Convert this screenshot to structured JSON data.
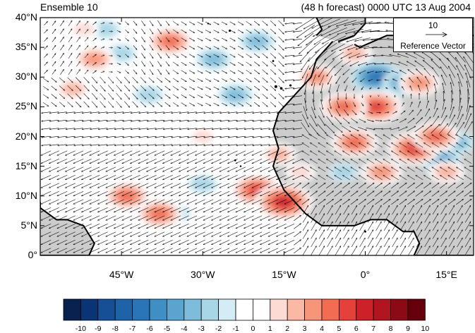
{
  "header": {
    "left_title": "Ensemble 10",
    "right_title": "(48 h forecast) 0000 UTC 13 Aug 2004"
  },
  "reference_vector": {
    "magnitude": "10",
    "label": "Reference Vector"
  },
  "map": {
    "lon_range": [
      -60,
      20
    ],
    "lat_range": [
      0,
      40
    ],
    "lat_ticks": [
      "40°N",
      "35°N",
      "30°N",
      "25°N",
      "20°N",
      "15°N",
      "10°N",
      "5°N",
      "0°"
    ],
    "lon_ticks": [
      "45°W",
      "30°W",
      "15°W",
      "0°",
      "15°E"
    ],
    "land_color": "#cccccc",
    "coastline_color": "#000000"
  },
  "colorbar": {
    "labels": [
      "-10",
      "-9",
      "-8",
      "-7",
      "-6",
      "-5",
      "-4",
      "-3",
      "-2",
      "-1",
      "0",
      "1",
      "2",
      "3",
      "4",
      "5",
      "6",
      "7",
      "8",
      "9",
      "10"
    ],
    "colors": [
      "#08214f",
      "#0b3474",
      "#164f95",
      "#1e63a8",
      "#2a75b7",
      "#3f8fc5",
      "#5aa4d0",
      "#7ebcdc",
      "#a9d6e6",
      "#d4ecf5",
      "#ffffff",
      "#ffffff",
      "#fddbd5",
      "#fbb8a5",
      "#f89478",
      "#f26b53",
      "#e5403a",
      "#cc2129",
      "#b1151f",
      "#8b0a15",
      "#65000b"
    ]
  },
  "anomaly_features": [
    {
      "sign": "neg",
      "level": 6,
      "lon": 2,
      "lat": 30
    },
    {
      "sign": "neg",
      "level": 4,
      "lon": 7,
      "lat": 29
    },
    {
      "sign": "neg",
      "level": 3,
      "lon": -28,
      "lat": 33
    },
    {
      "sign": "neg",
      "level": 3,
      "lon": -20,
      "lat": 36
    },
    {
      "sign": "neg",
      "level": 3,
      "lon": -24,
      "lat": 27
    },
    {
      "sign": "neg",
      "level": 2,
      "lon": -40,
      "lat": 27
    },
    {
      "sign": "neg",
      "level": 2,
      "lon": -48,
      "lat": 38
    },
    {
      "sign": "neg",
      "level": 2,
      "lon": -45,
      "lat": 34
    },
    {
      "sign": "neg",
      "level": 2,
      "lon": -30,
      "lat": 12
    },
    {
      "sign": "neg",
      "level": 2,
      "lon": -35,
      "lat": 7
    },
    {
      "sign": "neg",
      "level": 4,
      "lon": 14,
      "lat": 16
    },
    {
      "sign": "neg",
      "level": 3,
      "lon": 17,
      "lat": 19
    },
    {
      "sign": "neg",
      "level": 2,
      "lon": -4,
      "lat": 14
    },
    {
      "sign": "pos",
      "level": 6,
      "lon": -20,
      "lat": 11
    },
    {
      "sign": "pos",
      "level": 7,
      "lon": -15,
      "lat": 9
    },
    {
      "sign": "pos",
      "level": 5,
      "lon": -38,
      "lat": 7
    },
    {
      "sign": "pos",
      "level": 5,
      "lon": -44,
      "lat": 10
    },
    {
      "sign": "pos",
      "level": 5,
      "lon": -36,
      "lat": 36
    },
    {
      "sign": "pos",
      "level": 4,
      "lon": -50,
      "lat": 33
    },
    {
      "sign": "pos",
      "level": 3,
      "lon": -54,
      "lat": 28
    },
    {
      "sign": "pos",
      "level": 6,
      "lon": 2,
      "lat": 25
    },
    {
      "sign": "pos",
      "level": 5,
      "lon": -4,
      "lat": 25
    },
    {
      "sign": "pos",
      "level": 6,
      "lon": 9,
      "lat": 18
    },
    {
      "sign": "pos",
      "level": 5,
      "lon": 13,
      "lat": 20
    },
    {
      "sign": "pos",
      "level": 5,
      "lon": -2,
      "lat": 19
    },
    {
      "sign": "pos",
      "level": 4,
      "lon": 3,
      "lat": 14
    },
    {
      "sign": "pos",
      "level": 4,
      "lon": -9,
      "lat": 30
    },
    {
      "sign": "pos",
      "level": 3,
      "lon": -2,
      "lat": 34
    },
    {
      "sign": "pos",
      "level": 4,
      "lon": 10,
      "lat": 29
    },
    {
      "sign": "pos",
      "level": 3,
      "lon": -16,
      "lat": 17
    },
    {
      "sign": "pos",
      "level": 3,
      "lon": 15,
      "lat": 14
    },
    {
      "sign": "pos",
      "level": 2,
      "lon": -12,
      "lat": 14
    },
    {
      "sign": "pos",
      "level": 2,
      "lon": -52,
      "lat": 38
    },
    {
      "sign": "pos",
      "level": 2,
      "lon": -30,
      "lat": 20
    }
  ]
}
